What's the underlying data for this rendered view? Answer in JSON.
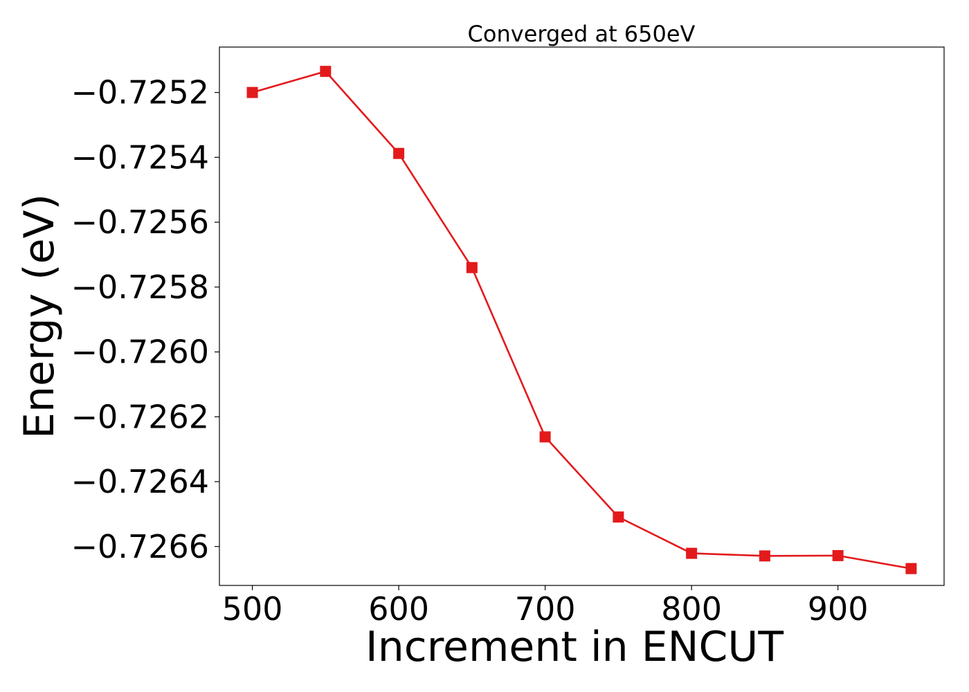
{
  "chart_data": {
    "type": "line",
    "title": "Converged at 650eV",
    "xlabel": "Increment in ENCUT",
    "ylabel": "Energy (eV)",
    "xlim": [
      477.5,
      972.5
    ],
    "ylim": [
      -0.72672,
      -0.72506
    ],
    "x_ticks": [
      500,
      600,
      700,
      800,
      900
    ],
    "x_tick_labels": [
      "500",
      "600",
      "700",
      "800",
      "900"
    ],
    "y_ticks": [
      -0.7252,
      -0.7254,
      -0.7256,
      -0.7258,
      -0.726,
      -0.7262,
      -0.7264,
      -0.7266
    ],
    "y_tick_labels": [
      "−0.7252",
      "−0.7254",
      "−0.7256",
      "−0.7258",
      "−0.7260",
      "−0.7262",
      "−0.7264",
      "−0.7266"
    ],
    "grid": false,
    "series": [
      {
        "color": "#e31a1c",
        "marker": "square",
        "x": [
          500,
          550,
          600,
          650,
          700,
          750,
          800,
          850,
          900,
          950
        ],
        "y": [
          -0.7252,
          -0.725135,
          -0.725388,
          -0.72574,
          -0.726262,
          -0.726509,
          -0.726621,
          -0.726629,
          -0.726628,
          -0.726668
        ]
      }
    ]
  }
}
